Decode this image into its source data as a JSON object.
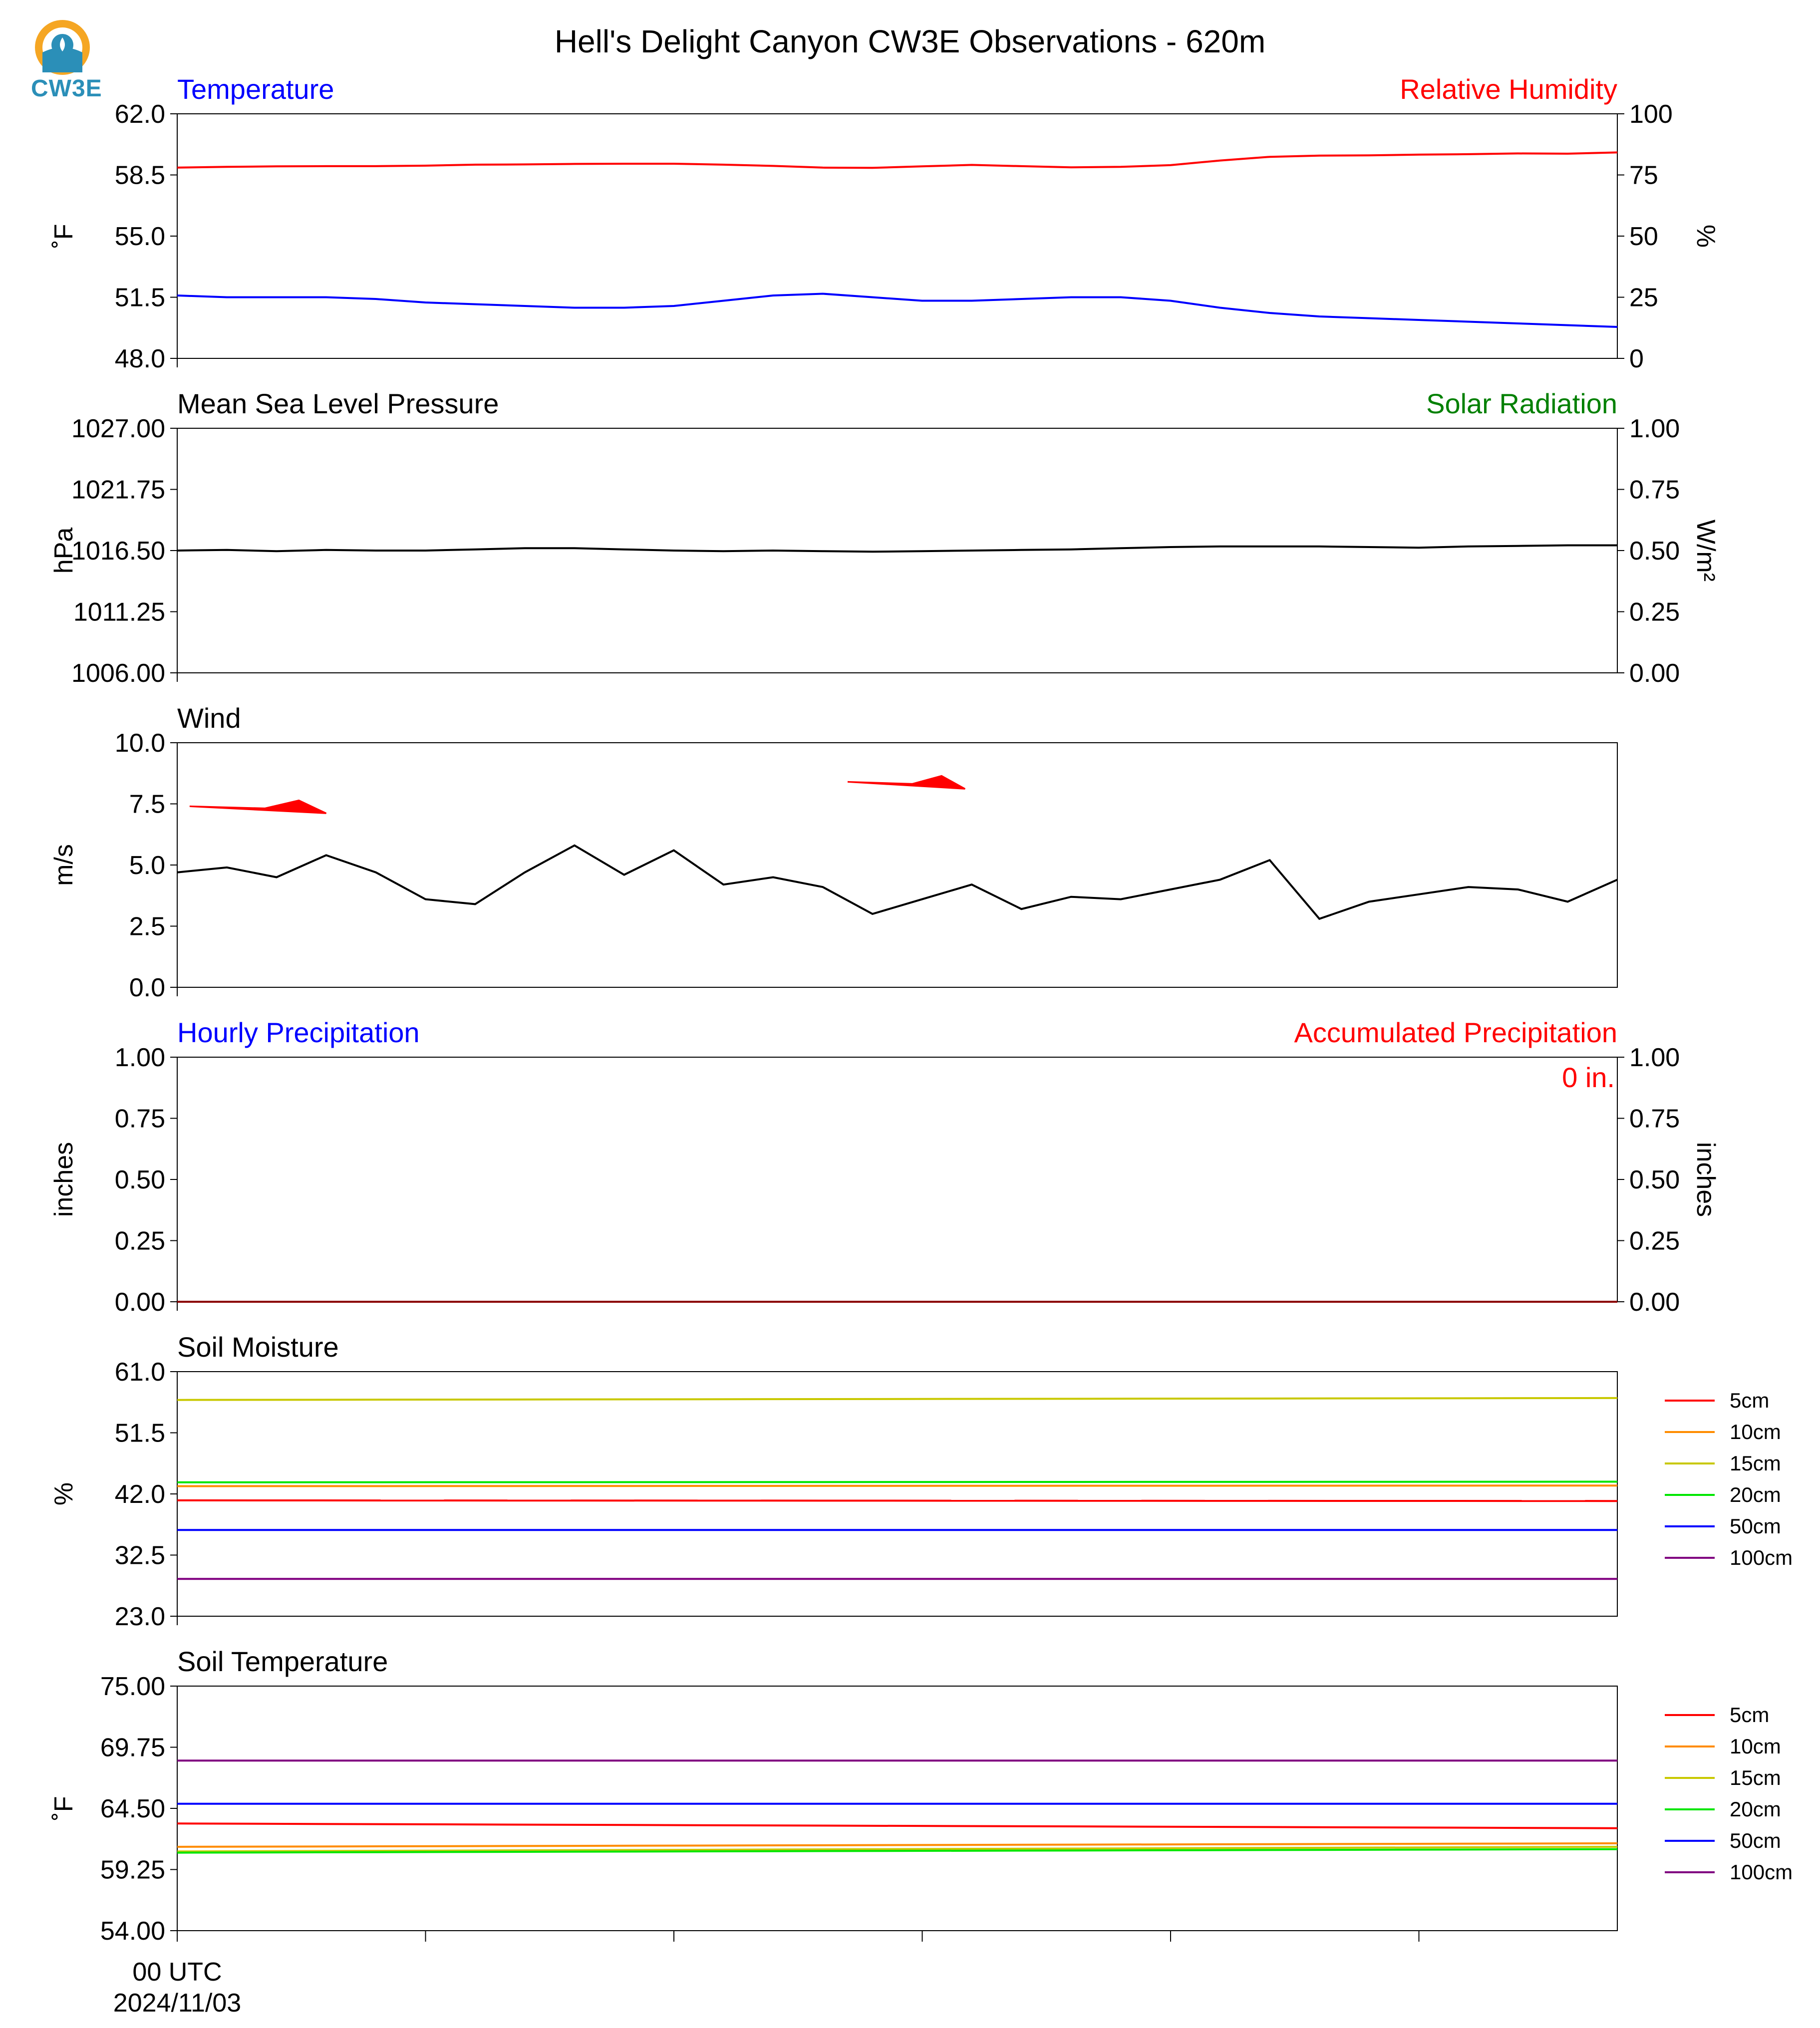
{
  "figure_title": "Hell's Delight Canyon CW3E Observations - 620m",
  "logo_text": "CW3E",
  "x_ticks": [
    {
      "label": "00 UTC",
      "sublabel": "2024/11/03"
    },
    {
      "label": "",
      "sublabel": ""
    },
    {
      "label": "",
      "sublabel": ""
    },
    {
      "label": "",
      "sublabel": ""
    },
    {
      "label": "",
      "sublabel": ""
    },
    {
      "label": "",
      "sublabel": ""
    }
  ],
  "chart_data": [
    {
      "id": "temp_rh",
      "type": "line",
      "title_left": "Temperature",
      "title_right": "Relative Humidity",
      "title_left_color": "#0000ff",
      "title_right_color": "#ff0000",
      "ylabel": "˚F",
      "ylabel_right": "%",
      "ylim": [
        48.0,
        62.0
      ],
      "yticks": [
        "62.0",
        "58.5",
        "55.0",
        "51.5",
        "48.0"
      ],
      "ylim_right": [
        0,
        100
      ],
      "yticks_right": [
        "100",
        "75",
        "50",
        "25",
        "0"
      ],
      "x": [
        0,
        1,
        2,
        3,
        4,
        5,
        6,
        7,
        8,
        9,
        10,
        11,
        12,
        13,
        14,
        15,
        16,
        17,
        18,
        19,
        20,
        21,
        22,
        23,
        24,
        25,
        26,
        27,
        28,
        29
      ],
      "series": [
        {
          "name": "",
          "axis": "left",
          "color": "#0000ff",
          "values": [
            51.6,
            51.5,
            51.5,
            51.5,
            51.4,
            51.2,
            51.1,
            51.0,
            50.9,
            50.9,
            51.0,
            51.3,
            51.6,
            51.7,
            51.5,
            51.3,
            51.3,
            51.4,
            51.5,
            51.5,
            51.3,
            50.9,
            50.6,
            50.4,
            50.3,
            50.2,
            50.1,
            50.0,
            49.9,
            49.8
          ]
        },
        {
          "name": "",
          "axis": "right",
          "color": "#ff0000",
          "values": [
            78,
            78.3,
            78.5,
            78.6,
            78.6,
            78.8,
            79.2,
            79.3,
            79.5,
            79.6,
            79.6,
            79.2,
            78.7,
            78.0,
            77.9,
            78.5,
            79.1,
            78.6,
            78.1,
            78.3,
            79.0,
            80.9,
            82.4,
            82.9,
            83.0,
            83.3,
            83.5,
            83.8,
            83.7,
            84.2
          ]
        }
      ]
    },
    {
      "id": "pressure",
      "type": "line",
      "title_left": "Mean Sea Level Pressure",
      "title_right": "Solar Radiation",
      "title_left_color": "#000000",
      "title_right_color": "#008000",
      "ylabel": "hPa",
      "ylabel_right": "W/m²",
      "ylim": [
        1006.0,
        1027.0
      ],
      "yticks": [
        "1027.00",
        "1021.75",
        "1016.50",
        "1011.25",
        "1006.00"
      ],
      "ylim_right": [
        0,
        1
      ],
      "yticks_right": [
        "1.00",
        "0.75",
        "0.50",
        "0.25",
        "0.00"
      ],
      "x": [
        0,
        1,
        2,
        3,
        4,
        5,
        6,
        7,
        8,
        9,
        10,
        11,
        12,
        13,
        14,
        15,
        16,
        17,
        18,
        19,
        20,
        21,
        22,
        23,
        24,
        25,
        26,
        27,
        28,
        29
      ],
      "series": [
        {
          "name": "",
          "axis": "left",
          "color": "#000000",
          "values": [
            1016.5,
            1016.55,
            1016.45,
            1016.55,
            1016.5,
            1016.5,
            1016.6,
            1016.7,
            1016.7,
            1016.6,
            1016.5,
            1016.45,
            1016.5,
            1016.45,
            1016.4,
            1016.45,
            1016.5,
            1016.55,
            1016.6,
            1016.7,
            1016.8,
            1016.85,
            1016.85,
            1016.85,
            1016.8,
            1016.75,
            1016.85,
            1016.9,
            1016.95,
            1016.95
          ]
        }
      ]
    },
    {
      "id": "wind",
      "type": "line",
      "title_left": "Wind",
      "title_left_color": "#000000",
      "ylabel": "m/s",
      "ylim": [
        0,
        10
      ],
      "yticks": [
        "10.0",
        "7.5",
        "5.0",
        "2.5",
        "0.0"
      ],
      "x": [
        0,
        1,
        2,
        3,
        4,
        5,
        6,
        7,
        8,
        9,
        10,
        11,
        12,
        13,
        14,
        15,
        16,
        17,
        18,
        19,
        20,
        21,
        22,
        23,
        24,
        25,
        26,
        27,
        28,
        29
      ],
      "series": [
        {
          "name": "",
          "axis": "left",
          "color": "#000000",
          "values": [
            4.7,
            4.9,
            4.5,
            5.4,
            4.7,
            3.6,
            3.4,
            4.7,
            5.8,
            4.6,
            5.6,
            4.2,
            4.5,
            4.1,
            3.0,
            3.6,
            4.2,
            3.2,
            3.7,
            3.6,
            4.0,
            4.4,
            5.2,
            2.8,
            3.5,
            3.8,
            4.1,
            4.0,
            3.5,
            4.4
          ]
        }
      ],
      "barbs": [
        {
          "x": 0.25,
          "y": 7.4,
          "direction": "west",
          "color": "#ff0000",
          "length": 5.0
        },
        {
          "x": 13.5,
          "y": 8.4,
          "direction": "west",
          "color": "#ff0000",
          "length": 4.3
        }
      ]
    },
    {
      "id": "precip",
      "type": "line",
      "title_left": "Hourly Precipitation",
      "title_right": "Accumulated Precipitation",
      "title_left_color": "#0000ff",
      "title_right_color": "#ff0000",
      "annotation": "0 in.",
      "ylabel": "inches",
      "ylabel_right": "inches",
      "ylim": [
        0,
        1
      ],
      "yticks": [
        "1.00",
        "0.75",
        "0.50",
        "0.25",
        "0.00"
      ],
      "ylim_right": [
        0,
        1
      ],
      "yticks_right": [
        "1.00",
        "0.75",
        "0.50",
        "0.25",
        "0.00"
      ],
      "x": [
        0,
        29
      ],
      "series": [
        {
          "name": "",
          "axis": "left",
          "color": "#8b0000",
          "values": [
            0,
            0
          ]
        }
      ]
    },
    {
      "id": "soil_moisture",
      "type": "line",
      "title_left": "Soil Moisture",
      "title_left_color": "#000000",
      "ylabel": "%",
      "ylim": [
        23.0,
        61.0
      ],
      "yticks": [
        "61.0",
        "51.5",
        "42.0",
        "32.5",
        "23.0"
      ],
      "x": [
        0,
        29
      ],
      "legend": "right",
      "series": [
        {
          "name": "5cm",
          "color": "#ff0000",
          "values": [
            41.0,
            40.9
          ]
        },
        {
          "name": "10cm",
          "color": "#ff8c00",
          "values": [
            43.2,
            43.3
          ]
        },
        {
          "name": "15cm",
          "color": "#c8c800",
          "values": [
            56.6,
            56.9
          ]
        },
        {
          "name": "20cm",
          "color": "#00e600",
          "values": [
            43.8,
            43.9
          ]
        },
        {
          "name": "50cm",
          "color": "#0000ff",
          "values": [
            36.4,
            36.4
          ]
        },
        {
          "name": "100cm",
          "color": "#800080",
          "values": [
            28.8,
            28.8
          ]
        }
      ]
    },
    {
      "id": "soil_temp",
      "type": "line",
      "title_left": "Soil Temperature",
      "title_left_color": "#000000",
      "ylabel": "˚F",
      "ylim": [
        54.0,
        75.0
      ],
      "yticks": [
        "75.00",
        "69.75",
        "64.50",
        "59.25",
        "54.00"
      ],
      "x": [
        0,
        29
      ],
      "legend": "right",
      "series": [
        {
          "name": "5cm",
          "color": "#ff0000",
          "values": [
            63.2,
            62.8
          ]
        },
        {
          "name": "10cm",
          "color": "#ff8c00",
          "values": [
            61.2,
            61.5
          ]
        },
        {
          "name": "15cm",
          "color": "#c8c800",
          "values": [
            60.8,
            61.2
          ]
        },
        {
          "name": "20cm",
          "color": "#00e600",
          "values": [
            60.7,
            61.0
          ]
        },
        {
          "name": "50cm",
          "color": "#0000ff",
          "values": [
            64.9,
            64.9
          ]
        },
        {
          "name": "100cm",
          "color": "#800080",
          "values": [
            68.6,
            68.6
          ]
        }
      ]
    }
  ]
}
